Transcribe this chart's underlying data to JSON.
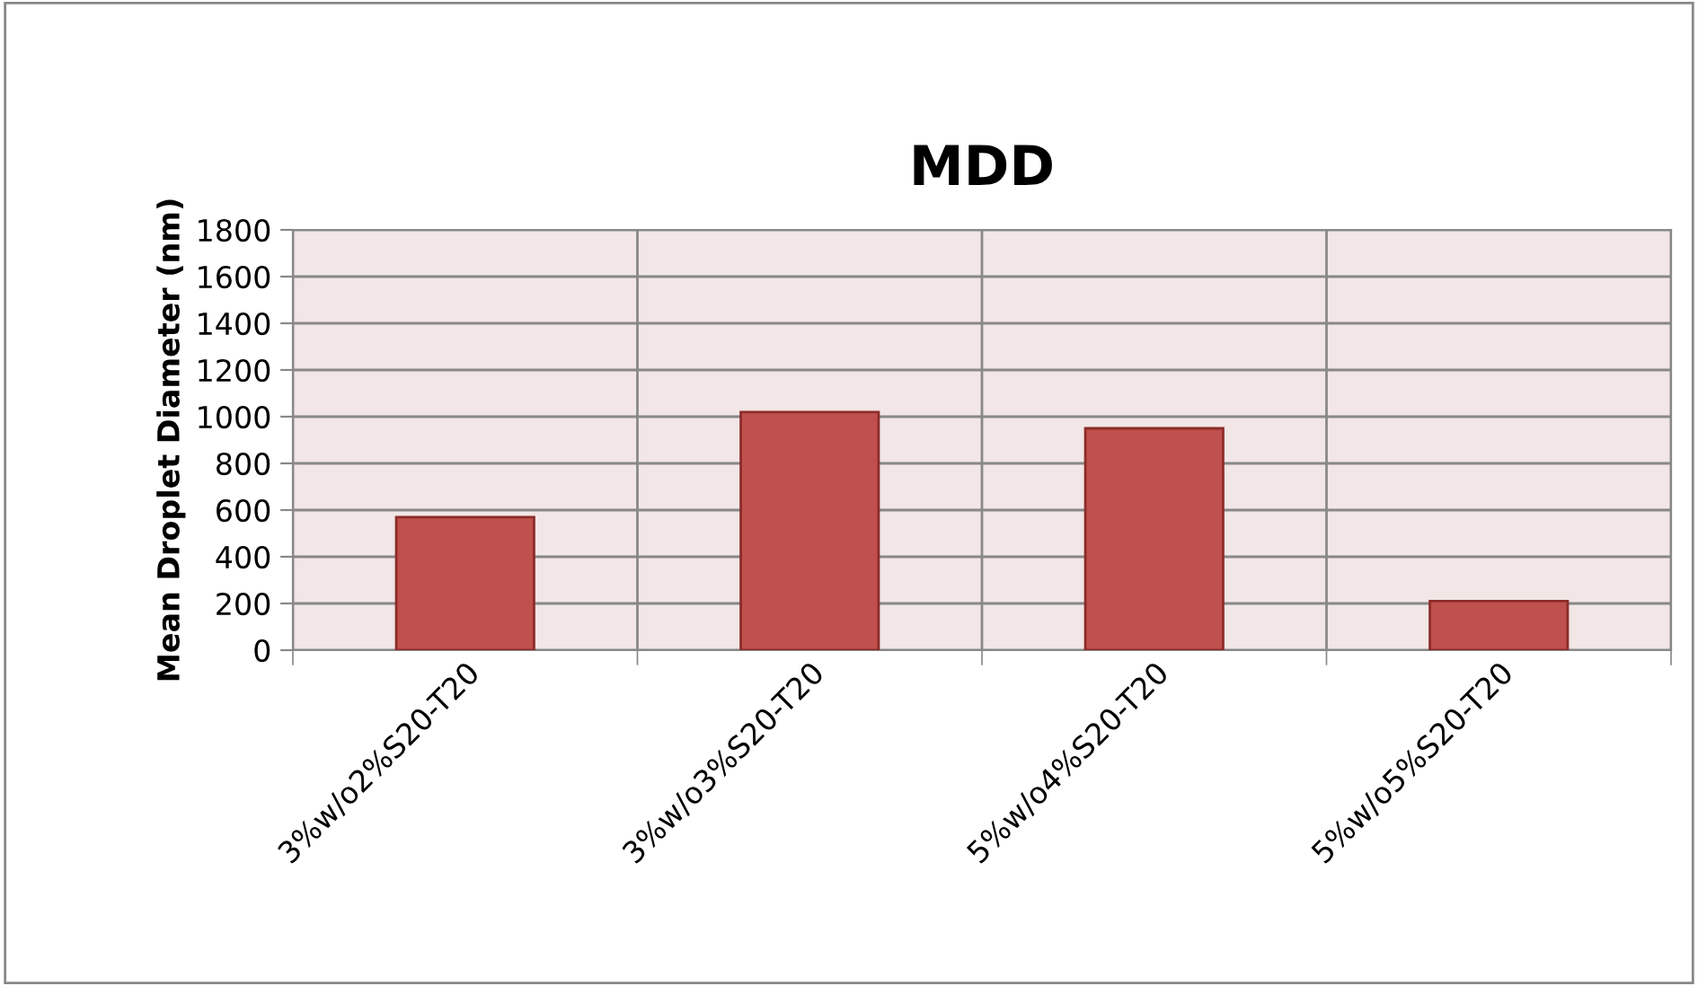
{
  "chart_data": {
    "type": "bar",
    "title": "MDD",
    "ylabel": "Mean Droplet Diameter (nm)",
    "categories": [
      "3%w/o2%S20-T20",
      "3%w/o3%S20-T20",
      "5%w/o4%S20-T20",
      "5%w/o5%S20-T20"
    ],
    "values": [
      570,
      1020,
      950,
      210
    ],
    "color": "#c0504d",
    "ylim": [
      0,
      1800
    ],
    "yticks": [
      0,
      200,
      400,
      600,
      800,
      1000,
      1200,
      1400,
      1600,
      1800
    ],
    "grid": true,
    "legend": false
  }
}
